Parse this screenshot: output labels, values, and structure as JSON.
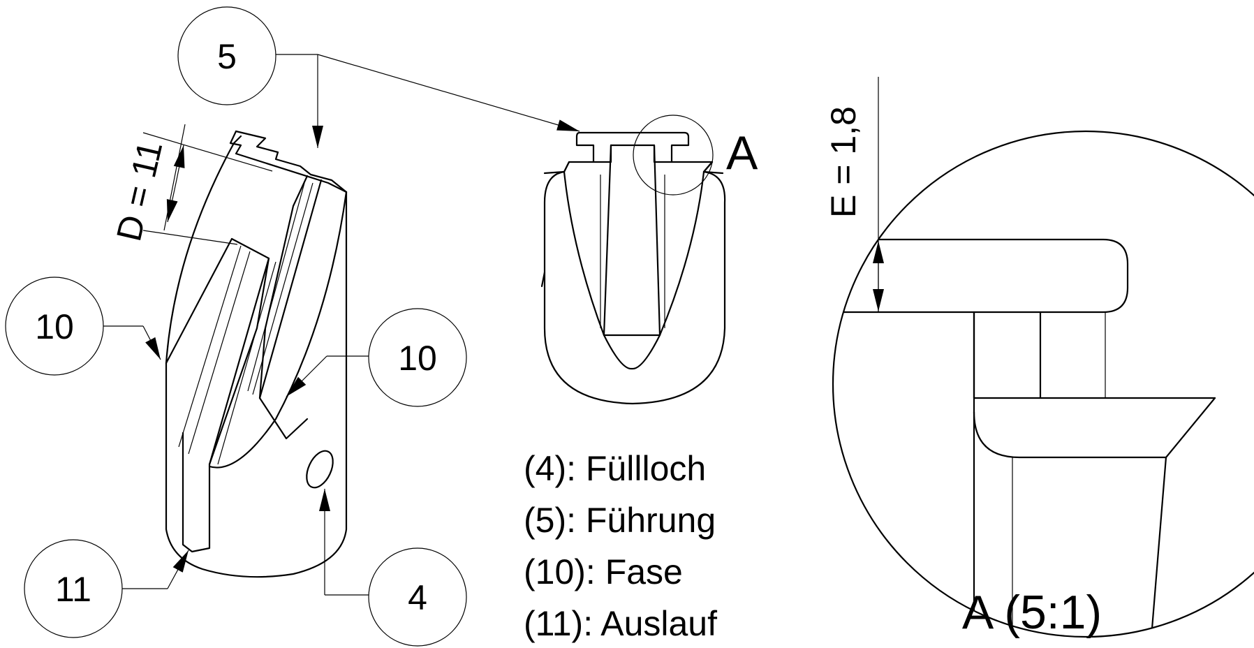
{
  "callouts": {
    "c5": "5",
    "c10_left": "10",
    "c10_right": "10",
    "c11": "11",
    "c4": "4"
  },
  "dimensions": {
    "d_value": "D =  11",
    "e_value": "E =  1,8"
  },
  "detail": {
    "marker": "A",
    "title": "A (5:1)"
  },
  "legend": [
    "(4): Füllloch",
    "(5): Führung",
    "(10): Fase",
    "(11): Auslauf"
  ]
}
